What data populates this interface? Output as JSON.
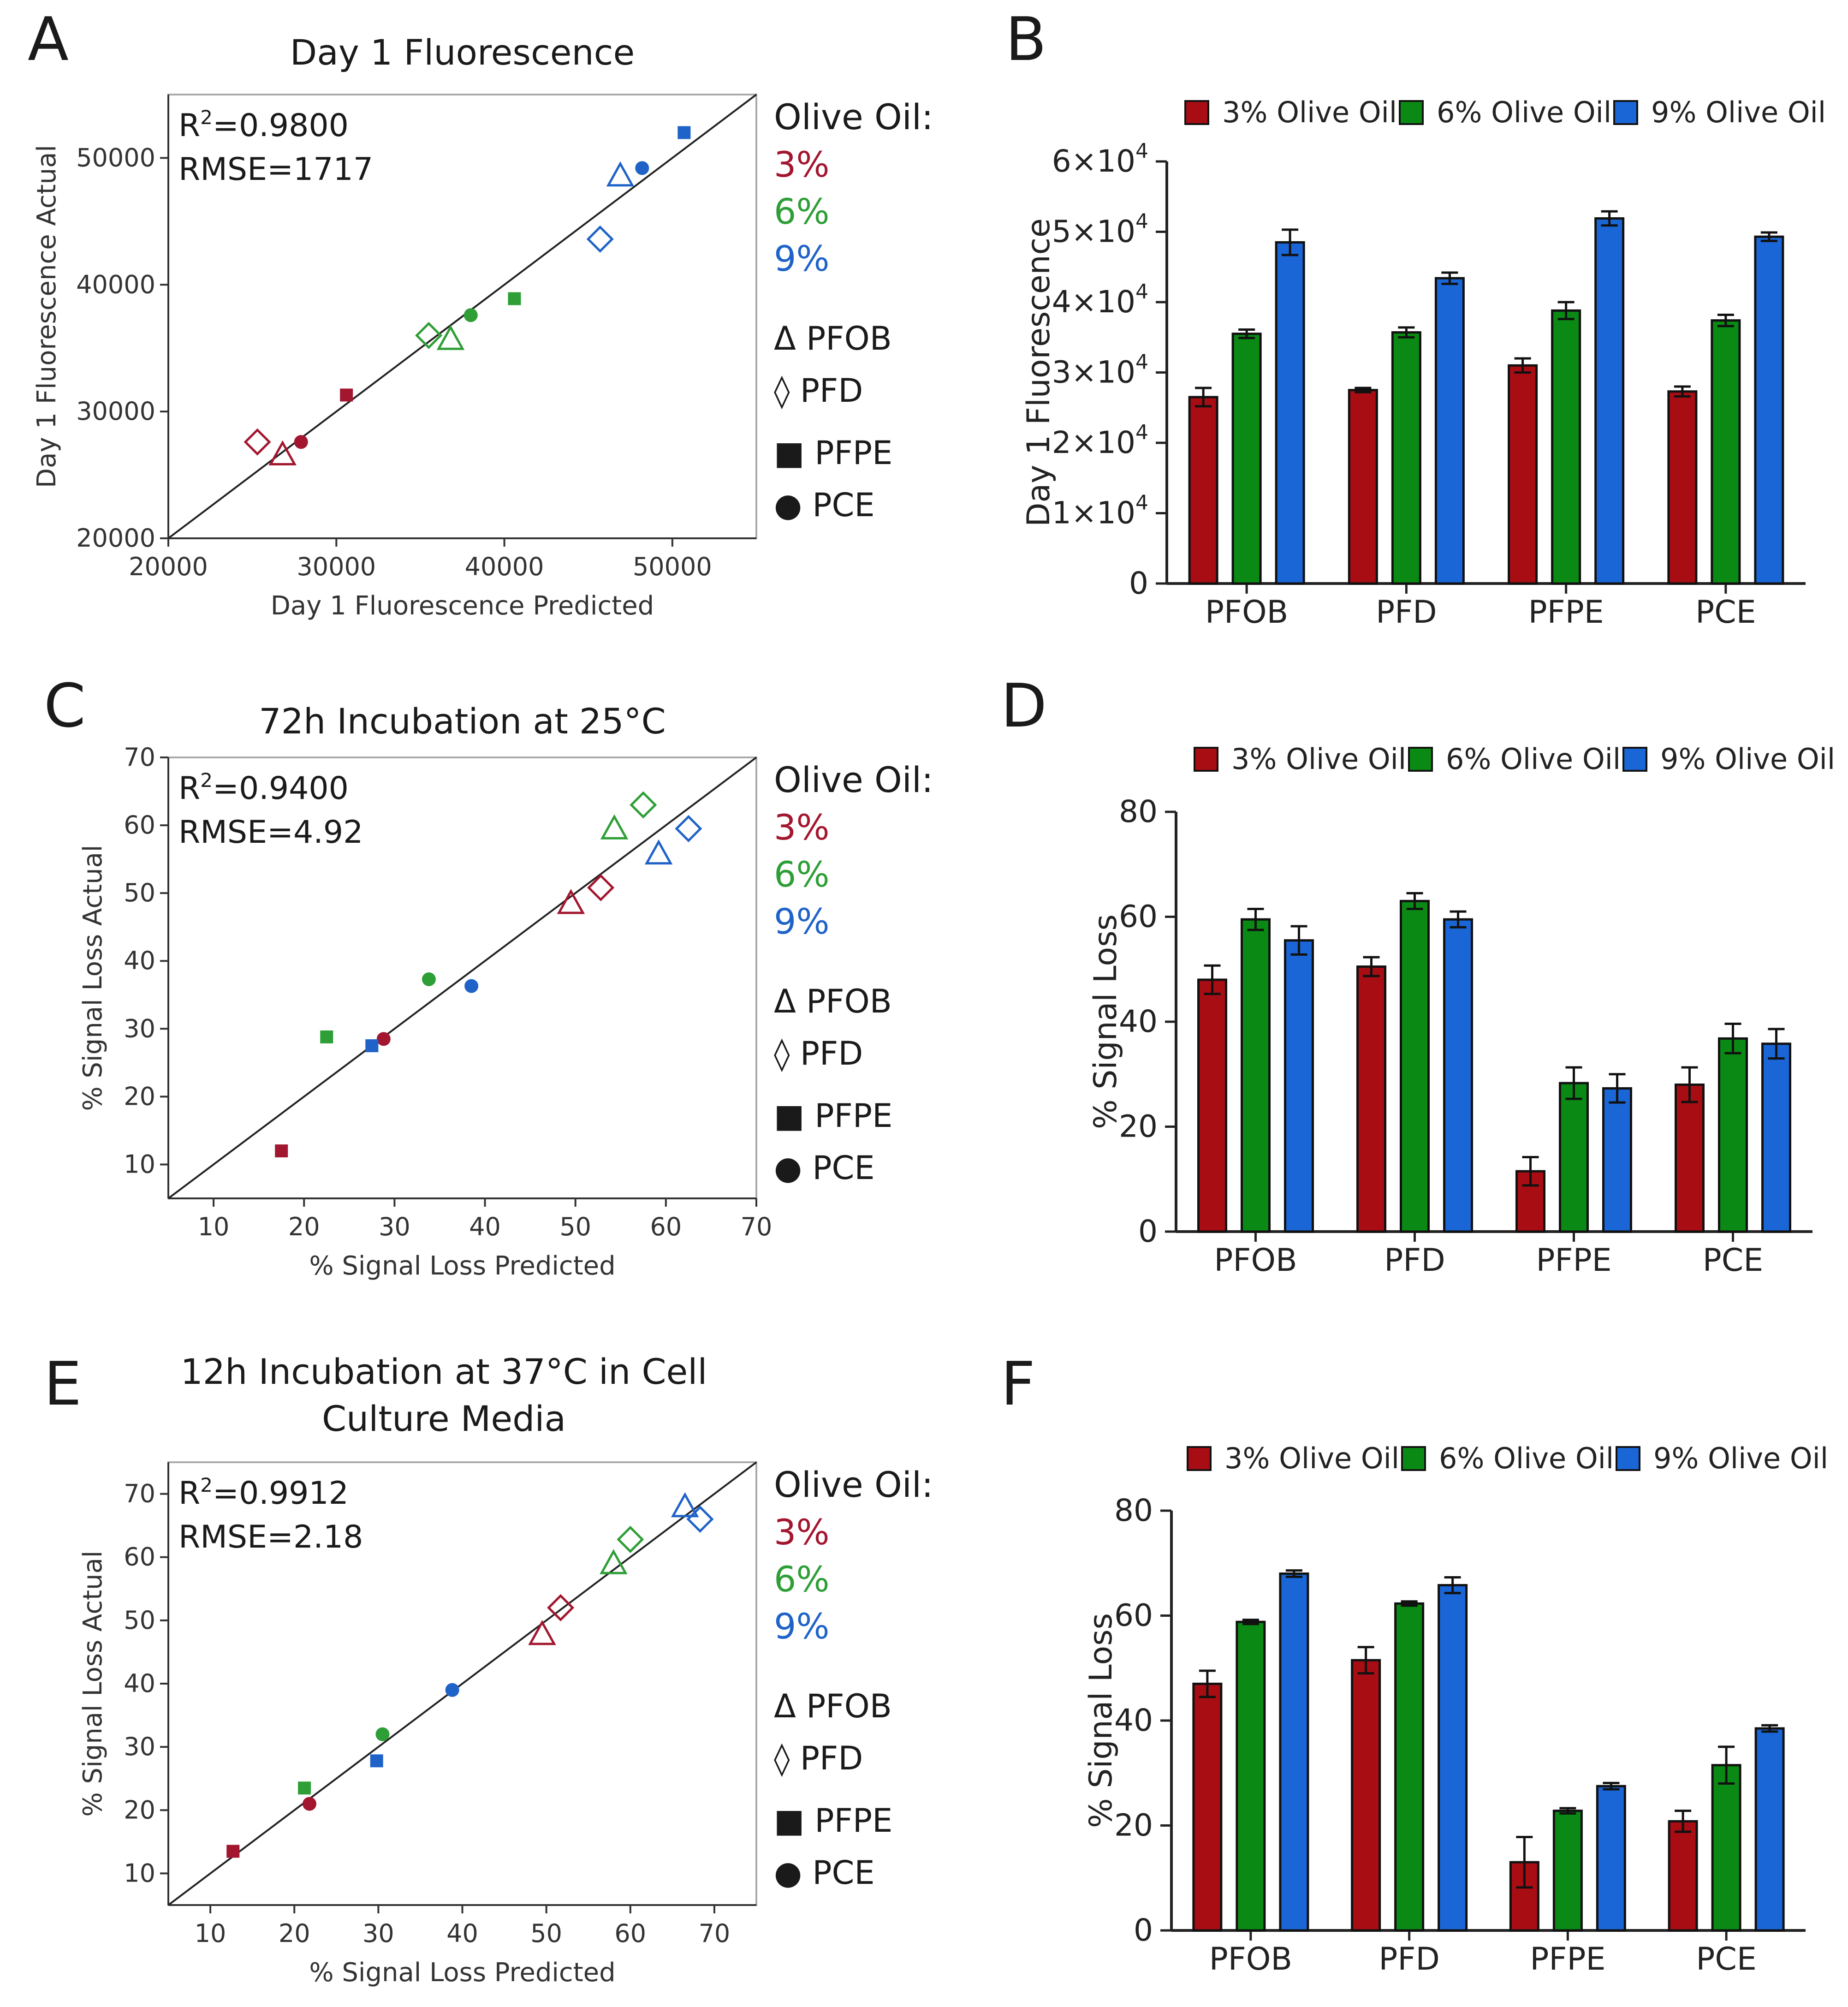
{
  "colors": {
    "red": "#a3162f",
    "green": "#2e9e36",
    "blue": "#1f63c8",
    "bar_red": "#a80d14",
    "bar_green": "#0a8a14",
    "bar_blue": "#1a66d6"
  },
  "legend_symbols": [
    "Δ PFOB",
    "◊ PFD",
    "■ PFPE",
    "● PCE"
  ],
  "chart_data": [
    {
      "panel": "A",
      "type": "scatter",
      "title": "Day 1 Fluorescence",
      "xlabel": "Day 1 Fluorescence Predicted",
      "ylabel": "Day 1 Fluorescence Actual",
      "xlim": [
        20000,
        55000
      ],
      "ylim": [
        20000,
        55000
      ],
      "xticks": [
        20000,
        30000,
        40000,
        50000
      ],
      "yticks": [
        20000,
        30000,
        40000,
        50000
      ],
      "stats": [
        "R2=0.9800",
        "RMSE=1717"
      ],
      "legend_title": "Olive Oil:",
      "legend_entries": [
        "3%",
        "6%",
        "9%"
      ],
      "points": [
        {
          "x": 25300,
          "y": 27600,
          "shape": "diamond",
          "group": "3%"
        },
        {
          "x": 26800,
          "y": 26600,
          "shape": "triangle",
          "group": "3%"
        },
        {
          "x": 27900,
          "y": 27600,
          "shape": "circle",
          "group": "3%"
        },
        {
          "x": 30600,
          "y": 31300,
          "shape": "square",
          "group": "3%"
        },
        {
          "x": 35500,
          "y": 36000,
          "shape": "diamond",
          "group": "6%"
        },
        {
          "x": 36800,
          "y": 35700,
          "shape": "triangle",
          "group": "6%"
        },
        {
          "x": 38000,
          "y": 37600,
          "shape": "circle",
          "group": "6%"
        },
        {
          "x": 40600,
          "y": 38900,
          "shape": "square",
          "group": "6%"
        },
        {
          "x": 45700,
          "y": 43600,
          "shape": "diamond",
          "group": "9%"
        },
        {
          "x": 46900,
          "y": 48600,
          "shape": "triangle",
          "group": "9%"
        },
        {
          "x": 48200,
          "y": 49200,
          "shape": "circle",
          "group": "9%"
        },
        {
          "x": 50700,
          "y": 52000,
          "shape": "square",
          "group": "9%"
        }
      ]
    },
    {
      "panel": "B",
      "type": "bar",
      "title": "",
      "ylabel": "Day 1 Fluorescence",
      "categories": [
        "PFOB",
        "PFD",
        "PFPE",
        "PCE"
      ],
      "ylim": [
        0,
        60000
      ],
      "ytick_labels": [
        "0",
        "1×10",
        "2×10",
        "3×10",
        "4×10",
        "5×10",
        "6×10"
      ],
      "ytick_exp": "4",
      "series": [
        {
          "name": "3% Olive Oil",
          "values": [
            26500,
            27500,
            31000,
            27300
          ],
          "errors": [
            1300,
            300,
            1000,
            700
          ]
        },
        {
          "name": "6% Olive Oil",
          "values": [
            35500,
            35700,
            38800,
            37400
          ],
          "errors": [
            600,
            700,
            1200,
            800
          ]
        },
        {
          "name": "9% Olive Oil",
          "values": [
            48500,
            43400,
            51900,
            49300
          ],
          "errors": [
            1800,
            800,
            1000,
            600
          ]
        }
      ]
    },
    {
      "panel": "C",
      "type": "scatter",
      "title": "72h Incubation at 25°C",
      "xlabel": "% Signal Loss Predicted",
      "ylabel": "% Signal Loss Actual",
      "xlim": [
        5,
        70
      ],
      "ylim": [
        5,
        70
      ],
      "xticks": [
        10,
        20,
        30,
        40,
        50,
        60,
        70
      ],
      "yticks": [
        10,
        20,
        30,
        40,
        50,
        60,
        70
      ],
      "stats": [
        "R2=0.9400",
        "RMSE=4.92"
      ],
      "legend_title": "Olive Oil:",
      "legend_entries": [
        "3%",
        "6%",
        "9%"
      ],
      "points": [
        {
          "x": 17.5,
          "y": 12.0,
          "shape": "square",
          "group": "3%"
        },
        {
          "x": 28.8,
          "y": 28.5,
          "shape": "circle",
          "group": "3%"
        },
        {
          "x": 49.5,
          "y": 48.5,
          "shape": "triangle",
          "group": "3%"
        },
        {
          "x": 52.8,
          "y": 50.8,
          "shape": "diamond",
          "group": "3%"
        },
        {
          "x": 22.5,
          "y": 28.8,
          "shape": "square",
          "group": "6%"
        },
        {
          "x": 33.8,
          "y": 37.3,
          "shape": "circle",
          "group": "6%"
        },
        {
          "x": 54.3,
          "y": 59.5,
          "shape": "triangle",
          "group": "6%"
        },
        {
          "x": 57.5,
          "y": 63.0,
          "shape": "diamond",
          "group": "6%"
        },
        {
          "x": 27.5,
          "y": 27.5,
          "shape": "square",
          "group": "9%"
        },
        {
          "x": 38.5,
          "y": 36.3,
          "shape": "circle",
          "group": "9%"
        },
        {
          "x": 59.2,
          "y": 55.8,
          "shape": "triangle",
          "group": "9%"
        },
        {
          "x": 62.5,
          "y": 59.5,
          "shape": "diamond",
          "group": "9%"
        }
      ]
    },
    {
      "panel": "D",
      "type": "bar",
      "title": "",
      "ylabel": "% Signal Loss",
      "categories": [
        "PFOB",
        "PFD",
        "PFPE",
        "PCE"
      ],
      "ylim": [
        0,
        80
      ],
      "ytick_labels": [
        "0",
        "20",
        "40",
        "60",
        "80"
      ],
      "series": [
        {
          "name": "3% Olive Oil",
          "values": [
            48.0,
            50.5,
            11.5,
            28.0
          ],
          "errors": [
            2.7,
            1.8,
            2.7,
            3.3
          ]
        },
        {
          "name": "6% Olive Oil",
          "values": [
            59.5,
            63.0,
            28.3,
            36.8
          ],
          "errors": [
            2.0,
            1.5,
            3.0,
            2.8
          ]
        },
        {
          "name": "9% Olive Oil",
          "values": [
            55.5,
            59.5,
            27.3,
            35.8
          ],
          "errors": [
            2.7,
            1.5,
            2.7,
            2.8
          ]
        }
      ]
    },
    {
      "panel": "E",
      "type": "scatter",
      "title_lines": [
        "12h Incubation at 37°C in Cell",
        "Culture Media"
      ],
      "xlabel": "% Signal Loss Predicted",
      "ylabel": "% Signal Loss Actual",
      "xlim": [
        5,
        75
      ],
      "ylim": [
        5,
        75
      ],
      "xticks": [
        10,
        20,
        30,
        40,
        50,
        60,
        70
      ],
      "yticks": [
        10,
        20,
        30,
        40,
        50,
        60,
        70
      ],
      "stats": [
        "R2=0.9912",
        "RMSE=2.18"
      ],
      "legend_title": "Olive Oil:",
      "legend_entries": [
        "3%",
        "6%",
        "9%"
      ],
      "points": [
        {
          "x": 12.7,
          "y": 13.5,
          "shape": "square",
          "group": "3%"
        },
        {
          "x": 21.8,
          "y": 21.0,
          "shape": "circle",
          "group": "3%"
        },
        {
          "x": 49.5,
          "y": 47.8,
          "shape": "triangle",
          "group": "3%"
        },
        {
          "x": 51.7,
          "y": 52.0,
          "shape": "diamond",
          "group": "3%"
        },
        {
          "x": 21.2,
          "y": 23.5,
          "shape": "square",
          "group": "6%"
        },
        {
          "x": 30.5,
          "y": 32.0,
          "shape": "circle",
          "group": "6%"
        },
        {
          "x": 58.0,
          "y": 59.0,
          "shape": "triangle",
          "group": "6%"
        },
        {
          "x": 60.0,
          "y": 62.8,
          "shape": "diamond",
          "group": "6%"
        },
        {
          "x": 29.8,
          "y": 27.8,
          "shape": "square",
          "group": "9%"
        },
        {
          "x": 38.8,
          "y": 39.0,
          "shape": "circle",
          "group": "9%"
        },
        {
          "x": 66.5,
          "y": 68.0,
          "shape": "triangle",
          "group": "9%"
        },
        {
          "x": 68.3,
          "y": 66.0,
          "shape": "diamond",
          "group": "9%"
        }
      ]
    },
    {
      "panel": "F",
      "type": "bar",
      "title": "",
      "ylabel": "% Signal Loss",
      "categories": [
        "PFOB",
        "PFD",
        "PFPE",
        "PCE"
      ],
      "ylim": [
        0,
        80
      ],
      "ytick_labels": [
        "0",
        "20",
        "40",
        "60",
        "80"
      ],
      "series": [
        {
          "name": "3% Olive Oil",
          "values": [
            47.0,
            51.5,
            13.0,
            20.8
          ],
          "errors": [
            2.5,
            2.5,
            4.8,
            2.0
          ]
        },
        {
          "name": "6% Olive Oil",
          "values": [
            58.8,
            62.3,
            22.8,
            31.5
          ],
          "errors": [
            0.4,
            0.4,
            0.5,
            3.5
          ]
        },
        {
          "name": "9% Olive Oil",
          "values": [
            68.0,
            65.8,
            27.5,
            38.5
          ],
          "errors": [
            0.6,
            1.5,
            0.6,
            0.6
          ]
        }
      ]
    }
  ]
}
